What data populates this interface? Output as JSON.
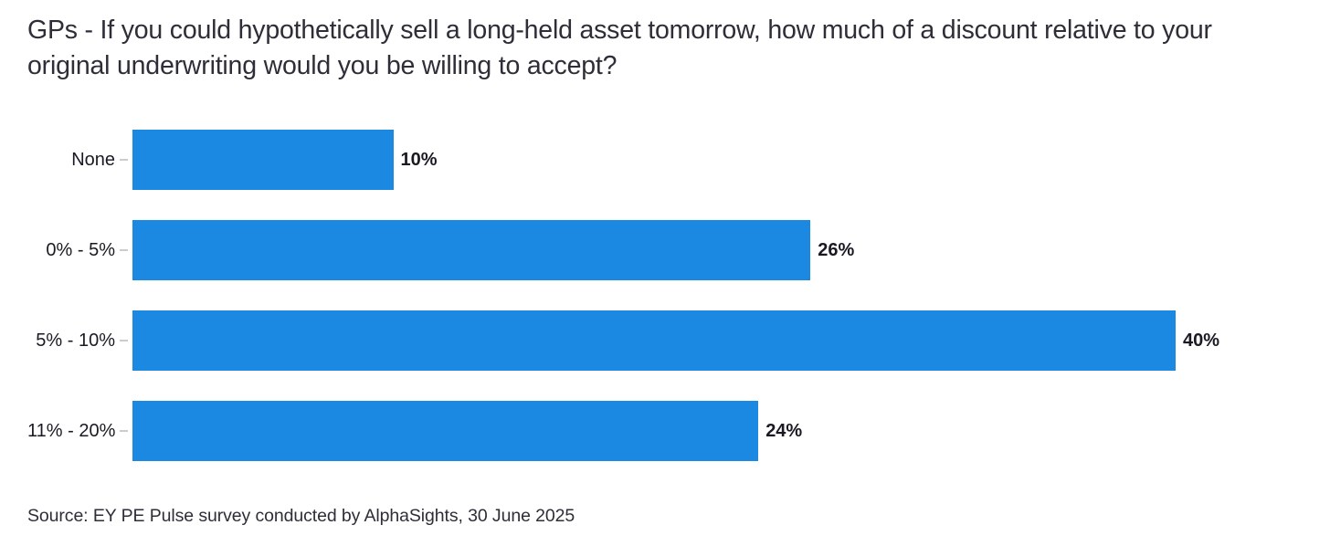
{
  "title": "GPs - If you could hypothetically sell a long-held asset tomorrow, how much of a discount relative to your original underwriting would you be willing to accept?",
  "source": "Source: EY PE Pulse survey conducted by AlphaSights, 30 June 2025",
  "colors": {
    "bar": "#1b88e2",
    "text": "#2e2e38",
    "tick": "#cccccc",
    "background": "#ffffff"
  },
  "chart_data": {
    "type": "bar",
    "orientation": "horizontal",
    "title": "GPs - If you could hypothetically sell a long-held asset tomorrow, how much of a discount relative to your original underwriting would you be willing to accept?",
    "categories": [
      "None",
      "0% - 5%",
      "5% - 10%",
      "11% - 20%"
    ],
    "values": [
      10,
      26,
      40,
      24
    ],
    "value_labels": [
      "10%",
      "26%",
      "40%",
      "24%"
    ],
    "xlabel": "",
    "ylabel": "",
    "xlim": [
      0,
      40
    ],
    "grid": false,
    "legend_position": "none",
    "source": "Source: EY PE Pulse survey conducted by AlphaSights, 30 June 2025"
  }
}
